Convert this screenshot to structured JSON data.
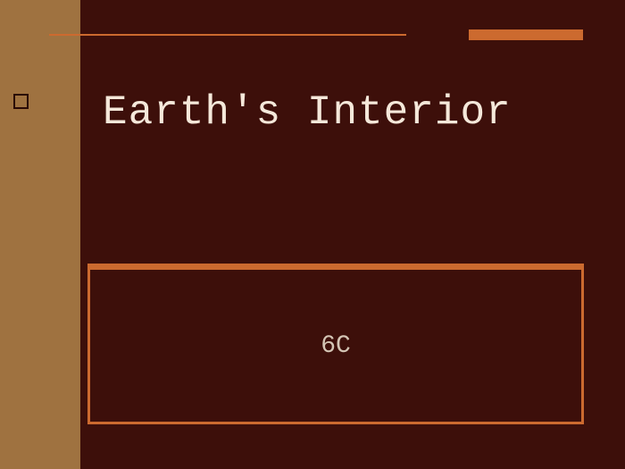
{
  "slide": {
    "title": "Earth's Interior",
    "subtitle": "6C",
    "background_color": "#3d0f0a",
    "left_bar_color": "#9f7240",
    "accent_color": "#cc6a2f",
    "title_color": "#f5e8da",
    "subtitle_color": "#d4c5b5",
    "title_fontsize": 46,
    "subtitle_fontsize": 28,
    "font_family": "Courier New"
  }
}
